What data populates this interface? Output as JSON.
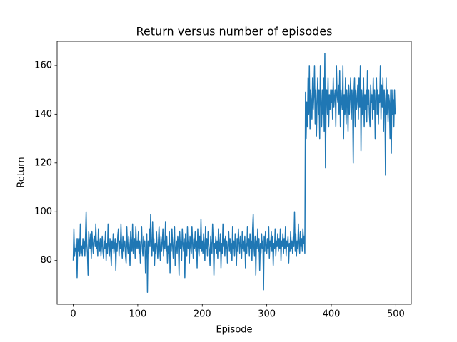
{
  "chart_data": {
    "type": "line",
    "title": "Return versus number of episodes",
    "x_label": "Episode",
    "y_label": "Return",
    "color": "#1f77b4",
    "xlim": [
      -24.95,
      523.95
    ],
    "ylim": [
      62.1,
      169.9
    ],
    "xticks": [
      0,
      100,
      200,
      300,
      400,
      500
    ],
    "yticks": [
      80,
      100,
      120,
      140,
      160
    ],
    "x": [
      0,
      1,
      2,
      3,
      4,
      5,
      6,
      7,
      8,
      9,
      10,
      11,
      12,
      13,
      14,
      15,
      16,
      17,
      18,
      19,
      20,
      21,
      22,
      23,
      24,
      25,
      26,
      27,
      28,
      29,
      30,
      31,
      32,
      33,
      34,
      35,
      36,
      37,
      38,
      39,
      40,
      41,
      42,
      43,
      44,
      45,
      46,
      47,
      48,
      49,
      50,
      51,
      52,
      53,
      54,
      55,
      56,
      57,
      58,
      59,
      60,
      61,
      62,
      63,
      64,
      65,
      66,
      67,
      68,
      69,
      70,
      71,
      72,
      73,
      74,
      75,
      76,
      77,
      78,
      79,
      80,
      81,
      82,
      83,
      84,
      85,
      86,
      87,
      88,
      89,
      90,
      91,
      92,
      93,
      94,
      95,
      96,
      97,
      98,
      99,
      100,
      101,
      102,
      103,
      104,
      105,
      106,
      107,
      108,
      109,
      110,
      111,
      112,
      113,
      114,
      115,
      116,
      117,
      118,
      119,
      120,
      121,
      122,
      123,
      124,
      125,
      126,
      127,
      128,
      129,
      130,
      131,
      132,
      133,
      134,
      135,
      136,
      137,
      138,
      139,
      140,
      141,
      142,
      143,
      144,
      145,
      146,
      147,
      148,
      149,
      150,
      151,
      152,
      153,
      154,
      155,
      156,
      157,
      158,
      159,
      160,
      161,
      162,
      163,
      164,
      165,
      166,
      167,
      168,
      169,
      170,
      171,
      172,
      173,
      174,
      175,
      176,
      177,
      178,
      179,
      180,
      181,
      182,
      183,
      184,
      185,
      186,
      187,
      188,
      189,
      190,
      191,
      192,
      193,
      194,
      195,
      196,
      197,
      198,
      199,
      200,
      201,
      202,
      203,
      204,
      205,
      206,
      207,
      208,
      209,
      210,
      211,
      212,
      213,
      214,
      215,
      216,
      217,
      218,
      219,
      220,
      221,
      222,
      223,
      224,
      225,
      226,
      227,
      228,
      229,
      230,
      231,
      232,
      233,
      234,
      235,
      236,
      237,
      238,
      239,
      240,
      241,
      242,
      243,
      244,
      245,
      246,
      247,
      248,
      249,
      250,
      251,
      252,
      253,
      254,
      255,
      256,
      257,
      258,
      259,
      260,
      261,
      262,
      263,
      264,
      265,
      266,
      267,
      268,
      269,
      270,
      271,
      272,
      273,
      274,
      275,
      276,
      277,
      278,
      279,
      280,
      281,
      282,
      283,
      284,
      285,
      286,
      287,
      288,
      289,
      290,
      291,
      292,
      293,
      294,
      295,
      296,
      297,
      298,
      299,
      300,
      301,
      302,
      303,
      304,
      305,
      306,
      307,
      308,
      309,
      310,
      311,
      312,
      313,
      314,
      315,
      316,
      317,
      318,
      319,
      320,
      321,
      322,
      323,
      324,
      325,
      326,
      327,
      328,
      329,
      330,
      331,
      332,
      333,
      334,
      335,
      336,
      337,
      338,
      339,
      340,
      341,
      342,
      343,
      344,
      345,
      346,
      347,
      348,
      349,
      350,
      351,
      352,
      353,
      354,
      355,
      356,
      357,
      358,
      359,
      360,
      361,
      362,
      363,
      364,
      365,
      366,
      367,
      368,
      369,
      370,
      371,
      372,
      373,
      374,
      375,
      376,
      377,
      378,
      379,
      380,
      381,
      382,
      383,
      384,
      385,
      386,
      387,
      388,
      389,
      390,
      391,
      392,
      393,
      394,
      395,
      396,
      397,
      398,
      399,
      400,
      401,
      402,
      403,
      404,
      405,
      406,
      407,
      408,
      409,
      410,
      411,
      412,
      413,
      414,
      415,
      416,
      417,
      418,
      419,
      420,
      421,
      422,
      423,
      424,
      425,
      426,
      427,
      428,
      429,
      430,
      431,
      432,
      433,
      434,
      435,
      436,
      437,
      438,
      439,
      440,
      441,
      442,
      443,
      444,
      445,
      446,
      447,
      448,
      449,
      450,
      451,
      452,
      453,
      454,
      455,
      456,
      457,
      458,
      459,
      460,
      461,
      462,
      463,
      464,
      465,
      466,
      467,
      468,
      469,
      470,
      471,
      472,
      473,
      474,
      475,
      476,
      477,
      478,
      479,
      480,
      481,
      482,
      483,
      484,
      485,
      486,
      487,
      488,
      489,
      490,
      491,
      492,
      493,
      494,
      495,
      496,
      497,
      498,
      499
    ],
    "values": [
      80,
      93,
      82,
      85,
      84,
      89,
      73,
      89,
      84,
      89,
      82,
      95,
      83,
      86,
      82,
      89,
      85,
      88,
      82,
      90,
      100,
      87,
      83,
      74,
      92,
      88,
      85,
      91,
      81,
      92,
      87,
      83,
      89,
      90,
      86,
      95,
      85,
      88,
      82,
      93,
      87,
      84,
      89,
      82,
      86,
      90,
      84,
      81,
      88,
      85,
      92,
      80,
      87,
      83,
      95,
      86,
      82,
      89,
      84,
      78,
      88,
      85,
      91,
      83,
      86,
      89,
      76,
      87,
      84,
      90,
      93,
      82,
      88,
      85,
      95,
      86,
      81,
      90,
      84,
      87,
      88,
      82,
      79,
      94,
      86,
      83,
      90,
      85,
      78,
      92,
      87,
      84,
      95,
      83,
      86,
      89,
      81,
      94,
      85,
      88,
      85,
      92,
      83,
      88,
      79,
      87,
      94,
      85,
      82,
      90,
      86,
      88,
      75,
      84,
      91,
      67,
      88,
      83,
      93,
      86,
      99,
      85,
      82,
      96,
      84,
      89,
      78,
      87,
      83,
      92,
      86,
      81,
      88,
      94,
      85,
      80,
      90,
      84,
      87,
      93,
      82,
      88,
      85,
      96,
      84,
      90,
      79,
      86,
      83,
      92,
      75,
      87,
      84,
      93,
      86,
      81,
      89,
      94,
      78,
      85,
      88,
      83,
      90,
      86,
      74,
      92,
      85,
      88,
      80,
      93,
      87,
      84,
      89,
      73,
      91,
      86,
      82,
      94,
      85,
      88,
      79,
      90,
      86,
      83,
      94,
      87,
      81,
      89,
      85,
      92,
      84,
      88,
      77,
      93,
      86,
      82,
      90,
      85,
      97,
      84,
      88,
      83,
      91,
      86,
      80,
      94,
      85,
      89,
      82,
      92,
      87,
      84,
      78,
      90,
      86,
      83,
      95,
      88,
      74,
      87,
      85,
      90,
      83,
      88,
      81,
      93,
      86,
      84,
      91,
      77,
      87,
      83,
      95,
      86,
      89,
      82,
      90,
      85,
      88,
      79,
      86,
      92,
      84,
      89,
      83,
      87,
      80,
      94,
      85,
      88,
      82,
      91,
      86,
      78,
      89,
      84,
      93,
      87,
      83,
      90,
      86,
      81,
      92,
      85,
      88,
      84,
      90,
      77,
      87,
      83,
      94,
      86,
      89,
      82,
      91,
      85,
      88,
      80,
      93,
      99,
      86,
      82,
      90,
      74,
      88,
      85,
      93,
      84,
      89,
      76,
      87,
      83,
      91,
      85,
      88,
      68,
      90,
      84,
      92,
      86,
      83,
      89,
      85,
      94,
      81,
      88,
      86,
      92,
      84,
      90,
      78,
      87,
      85,
      93,
      82,
      88,
      86,
      91,
      84,
      89,
      85,
      93,
      80,
      88,
      86,
      91,
      83,
      89,
      85,
      94,
      82,
      88,
      86,
      90,
      79,
      87,
      84,
      92,
      85,
      88,
      83,
      90,
      86,
      100,
      84,
      91,
      82,
      88,
      85,
      95,
      87,
      83,
      92,
      86,
      89,
      84,
      93,
      87,
      90,
      83,
      149,
      130,
      145,
      135,
      155,
      140,
      160,
      134,
      150,
      145,
      138,
      155,
      142,
      148,
      160,
      136,
      150,
      131,
      145,
      155,
      140,
      150,
      130,
      160,
      145,
      135,
      150,
      140,
      155,
      133,
      165,
      118,
      145,
      150,
      140,
      155,
      135,
      148,
      142,
      150,
      145,
      150,
      138,
      155,
      143,
      147,
      150,
      135,
      160,
      148,
      145,
      152,
      140,
      158,
      135,
      150,
      145,
      142,
      160,
      130,
      148,
      140,
      155,
      136,
      150,
      145,
      133,
      152,
      140,
      147,
      155,
      138,
      150,
      144,
      120,
      148,
      155,
      135,
      150,
      142,
      146,
      152,
      138,
      155,
      143,
      160,
      125,
      150,
      140,
      147,
      155,
      135,
      148,
      142,
      150,
      137,
      158,
      144,
      150,
      140,
      135,
      152,
      145,
      148,
      138,
      155,
      142,
      150,
      130,
      147,
      155,
      140,
      150,
      136,
      148,
      145,
      160,
      138,
      152,
      143,
      155,
      133,
      150,
      145,
      115,
      155,
      140,
      150,
      137,
      148,
      145,
      130,
      150,
      124,
      150,
      140,
      146,
      135,
      150,
      140
    ]
  }
}
